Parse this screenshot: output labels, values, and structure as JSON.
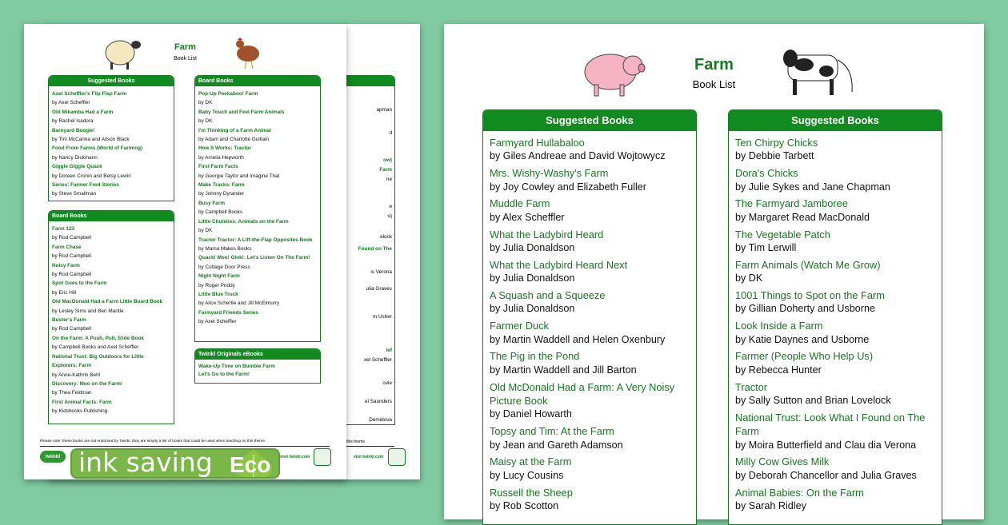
{
  "back_page": {
    "fragments": [
      {
        "text": "apman",
        "green": false
      },
      {
        "text": "d",
        "green": false
      },
      {
        "text": "ow)",
        "green": true
      },
      {
        "text": "Farm",
        "green": true
      },
      {
        "text": "ne",
        "green": false
      },
      {
        "text": "e",
        "green": false
      },
      {
        "text": "s)",
        "green": true
      },
      {
        "text": "elock",
        "green": false
      },
      {
        "text": "Found on The",
        "green": true
      },
      {
        "text": "is Verona",
        "green": false
      },
      {
        "text": "ulia Graves",
        "green": false
      },
      {
        "text": "m Usher",
        "green": false
      },
      {
        "text": "ief",
        "green": true
      },
      {
        "text": "xel Scheffler",
        "green": false
      },
      {
        "text": "ovie",
        "green": false
      },
      {
        "text": "el Saunders",
        "green": false
      },
      {
        "text": "Demidova",
        "green": false
      }
    ],
    "note_fragment": "this theme.",
    "visit": "visit twinkl.com"
  },
  "front_page": {
    "title": "Farm",
    "subtitle": "Book List",
    "suggested": {
      "heading": "Suggested Books",
      "items": [
        {
          "title": "Axel Scheffler's Flip Flap Farm",
          "author": "by Axel Scheffler"
        },
        {
          "title": "Old Mikamba Had a Farm",
          "author": "by Rachel Isadora"
        },
        {
          "title": "Barnyard Boogie!",
          "author": "by Tim McCanna and Alison Black"
        },
        {
          "title": "Food From Farms (World of Farming)",
          "author": "by Nancy Dickmann"
        },
        {
          "title": "Giggle Giggle Quack",
          "author": "by Doreen Cronin and Betsy Lewin"
        },
        {
          "title": "Series: Farmer Fred Stories",
          "author": "by Steve Smallman"
        }
      ]
    },
    "board1": {
      "heading": "Board Books",
      "items": [
        {
          "title": "Farm 123",
          "author": "by Rod Campbell"
        },
        {
          "title": "Farm Chase",
          "author": "by Rod Campbell"
        },
        {
          "title": "Noisy Farm",
          "author": "by Rod Campbell"
        },
        {
          "title": "Spot Goes to the Farm",
          "author": "by Eric Hill"
        },
        {
          "title": "Old MacDonald Had a Farm Little Board Book",
          "author": "by Lesley Sims and Ben Mantle"
        },
        {
          "title": "Buster's Farm",
          "author": "by Rod Campbell"
        },
        {
          "title": "On the Farm: A Push, Pull, Slide Book",
          "author": "by Campbell Books and Axel Scheffler"
        },
        {
          "title": "National Trust: Big Outdoors for Little Explorers: Farm",
          "author": "by Anne-Kathrin Behl"
        },
        {
          "title": "Discovery: Moo on the Farm!",
          "author": "by Thea Feldman"
        },
        {
          "title": "First Animal Facts: Farm",
          "author": "by Kidsbooks Publishing"
        }
      ]
    },
    "board2": {
      "heading": "Board Books",
      "items": [
        {
          "title": "Pop-Up Peekaboo! Farm",
          "author": "by DK"
        },
        {
          "title": "Baby Touch and Feel Farm Animals",
          "author": "by DK"
        },
        {
          "title": "I'm Thinking of a Farm Animal",
          "author": "by Adam and Charlotte Guillain"
        },
        {
          "title": "How It Works: Tractor",
          "author": "by Amelia Hepworth"
        },
        {
          "title": "First Farm Facts",
          "author": "by Georgie Taylor and Imagine That"
        },
        {
          "title": "Make Tracks: Farm",
          "author": "by Johnny Dyrander"
        },
        {
          "title": "Busy Farm",
          "author": "by Campbell Books"
        },
        {
          "title": "Little Chunkies: Animals on the Farm",
          "author": "by DK"
        },
        {
          "title": "Tractor Tractor: A Lift-the-Flap Opposites Book",
          "author": "by Mama Makes Books"
        },
        {
          "title": "Quack! Moo! Oink!: Let's Listen On The Farm!",
          "author": "by Cottage Door Press"
        },
        {
          "title": "Night Night Farm",
          "author": "by Roger Priddy"
        },
        {
          "title": "Little Blue Truck",
          "author": "by Alice Schertle and Jill McElmurry"
        },
        {
          "title": "Farmyard Friends Series",
          "author": "by Axel Scheffler"
        }
      ]
    },
    "originals": {
      "heading": "Twinkl Originals eBooks",
      "items": [
        "Wake-Up Time on Bumble Farm",
        "Let's Go to the Farm!"
      ]
    },
    "note": "Please note: these books are not endorsed by Twinkl, they are simply a list of books that could be used when teaching on this theme.",
    "logo": "twinkl",
    "visit": "visit twinkl.com"
  },
  "right_page": {
    "title": "Farm",
    "subtitle": "Book List",
    "col1": {
      "heading": "Suggested Books",
      "items": [
        {
          "title": "Farmyard Hullabaloo",
          "author": "by Giles Andreae and David Wojtowycz"
        },
        {
          "title": "Mrs. Wishy-Washy's Farm",
          "author": "by Joy Cowley and Elizabeth Fuller"
        },
        {
          "title": "Muddle Farm",
          "author": "by Alex Scheffler"
        },
        {
          "title": "What the Ladybird Heard",
          "author": "by Julia Donaldson"
        },
        {
          "title": "What the Ladybird Heard Next",
          "author": "by Julia Donaldson"
        },
        {
          "title": "A Squash and a Squeeze",
          "author": "by Julia Donaldson"
        },
        {
          "title": "Farmer Duck",
          "author": "by Martin Waddell and Helen Oxenbury"
        },
        {
          "title": "The Pig in the Pond",
          "author": "by Martin Waddell and Jill Barton"
        },
        {
          "title": "Old McDonald Had a Farm: A Very Noisy Picture Book",
          "author": "by Daniel Howarth"
        },
        {
          "title": "Topsy and Tim: At the Farm",
          "author": "by Jean and Gareth Adamson"
        },
        {
          "title": "Maisy at the Farm",
          "author": "by Lucy Cousins"
        },
        {
          "title": "Russell the Sheep",
          "author": "by Rob Scotton"
        }
      ]
    },
    "col2": {
      "heading": "Suggested Books",
      "items": [
        {
          "title": "Ten Chirpy Chicks",
          "author": "by Debbie Tarbett"
        },
        {
          "title": "Dora's Chicks",
          "author": "by Julie Sykes and Jane Chapman"
        },
        {
          "title": "The Farmyard Jamboree",
          "author": "by Margaret Read MacDonald"
        },
        {
          "title": "The Vegetable Patch",
          "author": "by Tim Lerwill"
        },
        {
          "title": "Farm Animals (Watch Me Grow)",
          "author": "by DK"
        },
        {
          "title": "1001 Things to Spot on the Farm",
          "author": "by Gillian Doherty and Usborne"
        },
        {
          "title": "Look Inside a Farm",
          "author": "by Katie Daynes and Usborne"
        },
        {
          "title": "Farmer (People Who Help Us)",
          "author": "by Rebecca Hunter"
        },
        {
          "title": "Tractor",
          "author": "by Sally Sutton and Brian Lovelock"
        },
        {
          "title": "National Trust: Look What I Found on The Farm",
          "author": "by Moira Butterfield and Clau dia Verona"
        },
        {
          "title": "Milly Cow Gives Milk",
          "author": "by Deborah Chancellor and Julia Graves"
        },
        {
          "title": "Animal Babies: On the Farm",
          "author": "by Sarah Ridley"
        }
      ]
    }
  },
  "eco_badge": {
    "label": "ink saving",
    "eco": "Eco",
    "color": "#7ab648"
  }
}
